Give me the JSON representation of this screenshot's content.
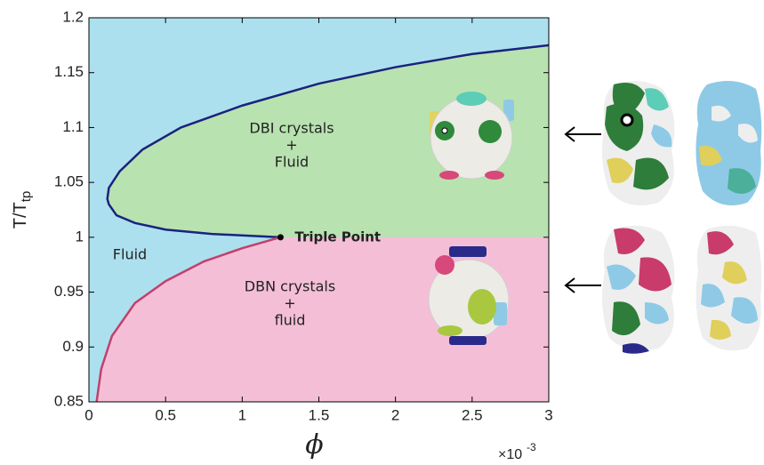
{
  "chart_data": {
    "type": "line",
    "ylabel": {
      "main": "T/T",
      "sub": "tp"
    },
    "xlabel": "ϕ",
    "x_multiplier": {
      "base": "×10",
      "exponent": "-3"
    },
    "xlim": [
      0,
      3
    ],
    "ylim": [
      0.85,
      1.2
    ],
    "xticks": [
      0,
      0.5,
      1,
      1.5,
      2,
      2.5,
      3
    ],
    "yticks": [
      0.85,
      0.9,
      0.95,
      1,
      1.05,
      1.1,
      1.15,
      1.2
    ],
    "background_color": "#ade0ee",
    "boundaries": [
      {
        "color": "#1a237e",
        "fill": "#b8e2b0",
        "x": [
          1.25,
          0.8,
          0.5,
          0.3,
          0.18,
          0.13,
          0.12,
          0.13,
          0.2,
          0.35,
          0.6,
          1.0,
          1.5,
          2.0,
          2.5,
          3.0
        ],
        "y": [
          1.0,
          1.003,
          1.007,
          1.013,
          1.02,
          1.03,
          1.035,
          1.045,
          1.06,
          1.08,
          1.1,
          1.12,
          1.14,
          1.155,
          1.167,
          1.175
        ]
      },
      {
        "color": "#c2406e",
        "fill": "#f4bfd6",
        "x": [
          0.05,
          0.08,
          0.15,
          0.3,
          0.5,
          0.75,
          1.0,
          1.25
        ],
        "y": [
          0.85,
          0.88,
          0.91,
          0.94,
          0.96,
          0.978,
          0.99,
          1.0
        ]
      }
    ],
    "triple_point": {
      "x": 1.25,
      "y": 1.0,
      "label": "Triple Point"
    },
    "regions": [
      {
        "lines": [
          "DBI crystals",
          "+",
          "Fluid"
        ]
      },
      {
        "lines": [
          "DBN crystals",
          "+",
          "fluid"
        ]
      },
      {
        "lines": [
          "Fluid"
        ]
      }
    ]
  }
}
